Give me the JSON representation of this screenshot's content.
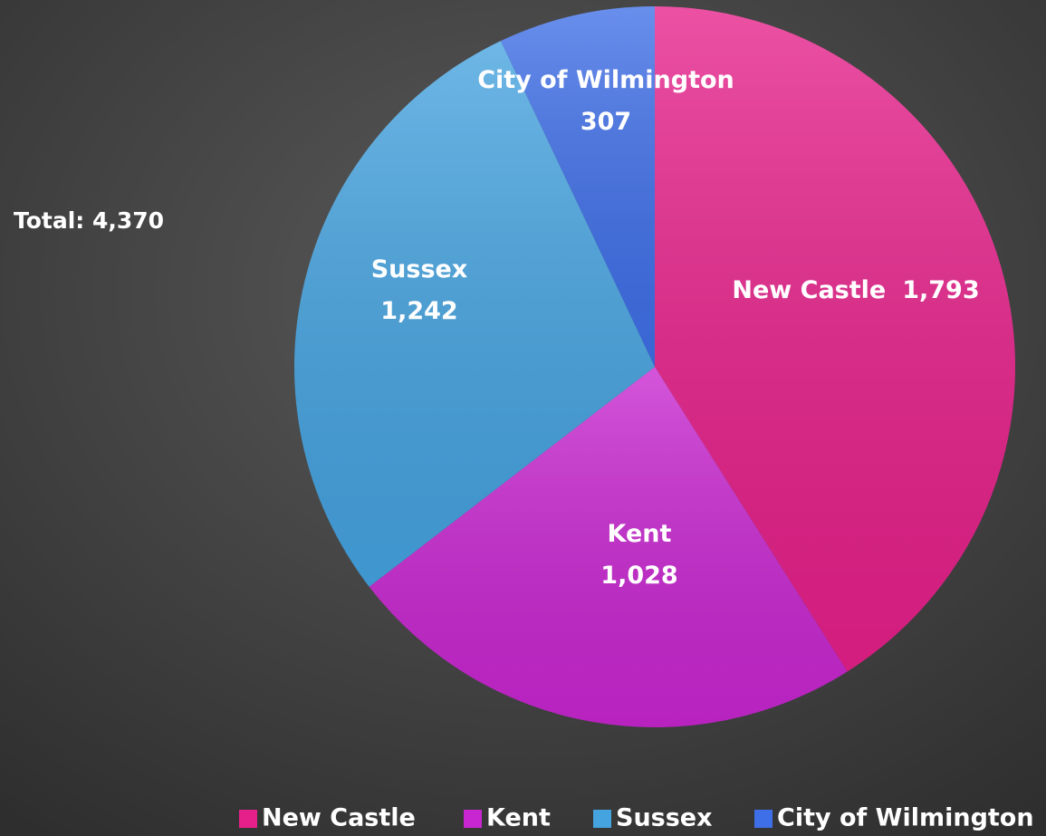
{
  "chart_data": {
    "type": "pie",
    "annotations": [
      "Total: 4,370"
    ],
    "categories": [
      "New Castle",
      "Kent",
      "Sussex",
      "City of Wilmington"
    ],
    "values": [
      1793,
      1028,
      1242,
      307
    ],
    "value_labels": [
      "1,793",
      "1,028",
      "1,242",
      "307"
    ],
    "colors": [
      "#e6208a",
      "#c826d0",
      "#45a3e0",
      "#3f6fe8"
    ],
    "legend": "bottom"
  }
}
